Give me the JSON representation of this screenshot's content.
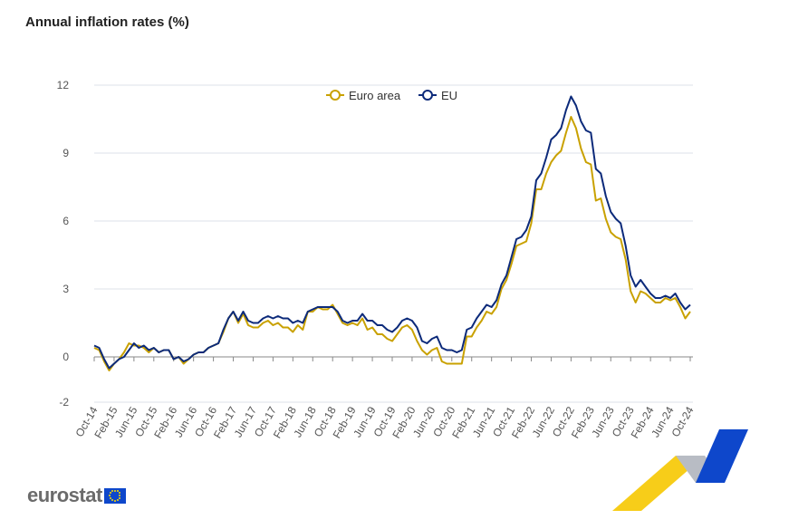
{
  "title": "Annual inflation rates (%)",
  "logo": "eurostat",
  "colors": {
    "euro_area": "#c9a100",
    "eu": "#0c2a7a",
    "grid": "#dde0e8",
    "axis": "#888888"
  },
  "chart_data": {
    "type": "line",
    "title": "Annual inflation rates (%)",
    "xlabel": "",
    "ylabel": "",
    "ylim": [
      -2,
      12
    ],
    "yticks": [
      -2,
      0,
      3,
      6,
      9,
      12
    ],
    "grid": true,
    "legend": "top-center",
    "x": [
      "Oct-14",
      "Nov-14",
      "Dec-14",
      "Jan-15",
      "Feb-15",
      "Mar-15",
      "Apr-15",
      "May-15",
      "Jun-15",
      "Jul-15",
      "Aug-15",
      "Sep-15",
      "Oct-15",
      "Nov-15",
      "Dec-15",
      "Jan-16",
      "Feb-16",
      "Mar-16",
      "Apr-16",
      "May-16",
      "Jun-16",
      "Jul-16",
      "Aug-16",
      "Sep-16",
      "Oct-16",
      "Nov-16",
      "Dec-16",
      "Jan-17",
      "Feb-17",
      "Mar-17",
      "Apr-17",
      "May-17",
      "Jun-17",
      "Jul-17",
      "Aug-17",
      "Sep-17",
      "Oct-17",
      "Nov-17",
      "Dec-17",
      "Jan-18",
      "Feb-18",
      "Mar-18",
      "Apr-18",
      "May-18",
      "Jun-18",
      "Jul-18",
      "Aug-18",
      "Sep-18",
      "Oct-18",
      "Nov-18",
      "Dec-18",
      "Jan-19",
      "Feb-19",
      "Mar-19",
      "Apr-19",
      "May-19",
      "Jun-19",
      "Jul-19",
      "Aug-19",
      "Sep-19",
      "Oct-19",
      "Nov-19",
      "Dec-19",
      "Jan-20",
      "Feb-20",
      "Mar-20",
      "Apr-20",
      "May-20",
      "Jun-20",
      "Jul-20",
      "Aug-20",
      "Sep-20",
      "Oct-20",
      "Nov-20",
      "Dec-20",
      "Jan-21",
      "Feb-21",
      "Mar-21",
      "Apr-21",
      "May-21",
      "Jun-21",
      "Jul-21",
      "Aug-21",
      "Sep-21",
      "Oct-21",
      "Nov-21",
      "Dec-21",
      "Jan-22",
      "Feb-22",
      "Mar-22",
      "Apr-22",
      "May-22",
      "Jun-22",
      "Jul-22",
      "Aug-22",
      "Sep-22",
      "Oct-22",
      "Nov-22",
      "Dec-22",
      "Jan-23",
      "Feb-23",
      "Mar-23",
      "Apr-23",
      "May-23",
      "Jun-23",
      "Jul-23",
      "Aug-23",
      "Sep-23",
      "Oct-23",
      "Nov-23",
      "Dec-23",
      "Jan-24",
      "Feb-24",
      "Mar-24",
      "Apr-24",
      "May-24",
      "Jun-24",
      "Jul-24",
      "Aug-24",
      "Sep-24",
      "Oct-24"
    ],
    "xtick_labels": [
      "Oct-14",
      "Feb-15",
      "Jun-15",
      "Oct-15",
      "Feb-16",
      "Jun-16",
      "Oct-16",
      "Feb-17",
      "Jun-17",
      "Oct-17",
      "Feb-18",
      "Jun-18",
      "Oct-18",
      "Feb-19",
      "Jun-19",
      "Oct-19",
      "Feb-20",
      "Jun-20",
      "Oct-20",
      "Feb-21",
      "Jun-21",
      "Oct-21",
      "Feb-22",
      "Jun-22",
      "Oct-22",
      "Feb-23",
      "Jun-23",
      "Oct-23",
      "Feb-24",
      "Jun-24",
      "Oct-24"
    ],
    "series": [
      {
        "name": "Euro area",
        "values": [
          0.4,
          0.3,
          -0.2,
          -0.6,
          -0.3,
          -0.1,
          0.2,
          0.6,
          0.5,
          0.5,
          0.4,
          0.2,
          0.4,
          0.2,
          0.3,
          0.3,
          -0.1,
          0.0,
          -0.3,
          -0.1,
          0.1,
          0.2,
          0.2,
          0.4,
          0.5,
          0.6,
          1.1,
          1.7,
          2.0,
          1.5,
          1.9,
          1.4,
          1.3,
          1.3,
          1.5,
          1.6,
          1.4,
          1.5,
          1.3,
          1.3,
          1.1,
          1.4,
          1.2,
          2.0,
          2.0,
          2.2,
          2.1,
          2.1,
          2.3,
          1.9,
          1.5,
          1.4,
          1.5,
          1.4,
          1.7,
          1.2,
          1.3,
          1.0,
          1.0,
          0.8,
          0.7,
          1.0,
          1.3,
          1.4,
          1.2,
          0.7,
          0.3,
          0.1,
          0.3,
          0.4,
          -0.2,
          -0.3,
          -0.3,
          -0.3,
          -0.3,
          0.9,
          0.9,
          1.3,
          1.6,
          2.0,
          1.9,
          2.2,
          3.0,
          3.4,
          4.1,
          4.9,
          5.0,
          5.1,
          5.9,
          7.4,
          7.4,
          8.1,
          8.6,
          8.9,
          9.1,
          9.9,
          10.6,
          10.1,
          9.2,
          8.6,
          8.5,
          6.9,
          7.0,
          6.1,
          5.5,
          5.3,
          5.2,
          4.3,
          2.9,
          2.4,
          2.9,
          2.8,
          2.6,
          2.4,
          2.4,
          2.6,
          2.5,
          2.6,
          2.2,
          1.7,
          2.0
        ]
      },
      {
        "name": "EU",
        "values": [
          0.5,
          0.4,
          -0.1,
          -0.5,
          -0.3,
          -0.1,
          0.0,
          0.3,
          0.6,
          0.4,
          0.5,
          0.3,
          0.4,
          0.2,
          0.3,
          0.3,
          -0.1,
          0.0,
          -0.2,
          -0.1,
          0.1,
          0.2,
          0.2,
          0.4,
          0.5,
          0.6,
          1.2,
          1.7,
          2.0,
          1.6,
          2.0,
          1.6,
          1.5,
          1.5,
          1.7,
          1.8,
          1.7,
          1.8,
          1.7,
          1.7,
          1.5,
          1.6,
          1.5,
          2.0,
          2.1,
          2.2,
          2.2,
          2.2,
          2.2,
          2.0,
          1.6,
          1.5,
          1.6,
          1.6,
          1.9,
          1.6,
          1.6,
          1.4,
          1.4,
          1.2,
          1.1,
          1.3,
          1.6,
          1.7,
          1.6,
          1.3,
          0.7,
          0.6,
          0.8,
          0.9,
          0.4,
          0.3,
          0.3,
          0.2,
          0.3,
          1.2,
          1.3,
          1.7,
          2.0,
          2.3,
          2.2,
          2.5,
          3.2,
          3.6,
          4.4,
          5.2,
          5.3,
          5.6,
          6.2,
          7.8,
          8.1,
          8.8,
          9.6,
          9.8,
          10.1,
          10.9,
          11.5,
          11.1,
          10.4,
          10.0,
          9.9,
          8.3,
          8.1,
          7.1,
          6.4,
          6.1,
          5.9,
          4.9,
          3.6,
          3.1,
          3.4,
          3.1,
          2.8,
          2.6,
          2.6,
          2.7,
          2.6,
          2.8,
          2.4,
          2.1,
          2.3
        ]
      }
    ]
  }
}
